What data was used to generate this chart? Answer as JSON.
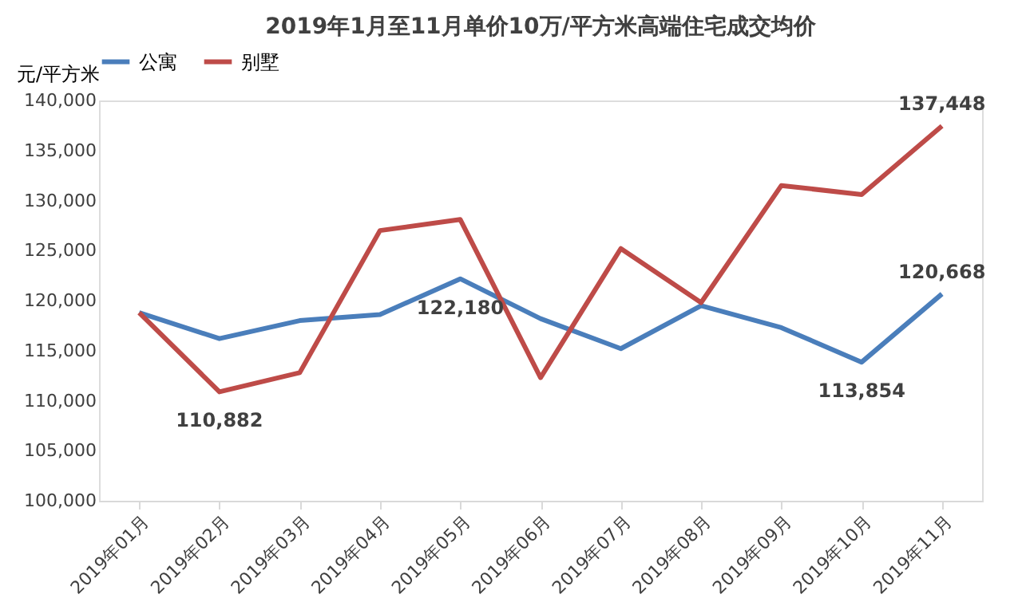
{
  "chart_data": {
    "type": "line",
    "title": "2019年1月至11月单价10万/平方米高端住宅成交均价",
    "ylabel": "元/平方米",
    "categories": [
      "2019年01月",
      "2019年02月",
      "2019年03月",
      "2019年04月",
      "2019年05月",
      "2019年06月",
      "2019年07月",
      "2019年08月",
      "2019年09月",
      "2019年10月",
      "2019年11月"
    ],
    "series": [
      {
        "name": "公寓",
        "color": "#4a7ebb",
        "values": [
          118800,
          116200,
          118000,
          118600,
          122180,
          118200,
          115200,
          119500,
          117300,
          113854,
          120668
        ],
        "value_labels": [
          null,
          null,
          null,
          null,
          "122,180",
          null,
          null,
          null,
          null,
          "113,854",
          "120,668"
        ]
      },
      {
        "name": "别墅",
        "color": "#be4b48",
        "values": [
          118800,
          110882,
          112800,
          127000,
          128100,
          112300,
          125200,
          119800,
          131500,
          130600,
          137448
        ],
        "value_labels": [
          null,
          "110,882",
          null,
          null,
          null,
          null,
          null,
          null,
          null,
          null,
          "137,448"
        ]
      }
    ],
    "ylim": [
      100000,
      140000
    ],
    "yticks": [
      {
        "value": 100000,
        "label": "100,000"
      },
      {
        "value": 105000,
        "label": "105,000"
      },
      {
        "value": 110000,
        "label": "110,000"
      },
      {
        "value": 115000,
        "label": "115,000"
      },
      {
        "value": 120000,
        "label": "120,000"
      },
      {
        "value": 125000,
        "label": "125,000"
      },
      {
        "value": 130000,
        "label": "130,000"
      },
      {
        "value": 135000,
        "label": "135,000"
      },
      {
        "value": 140000,
        "label": "140,000"
      }
    ],
    "grid": false,
    "legend": "top",
    "marker": "none",
    "line_style": "solid"
  }
}
